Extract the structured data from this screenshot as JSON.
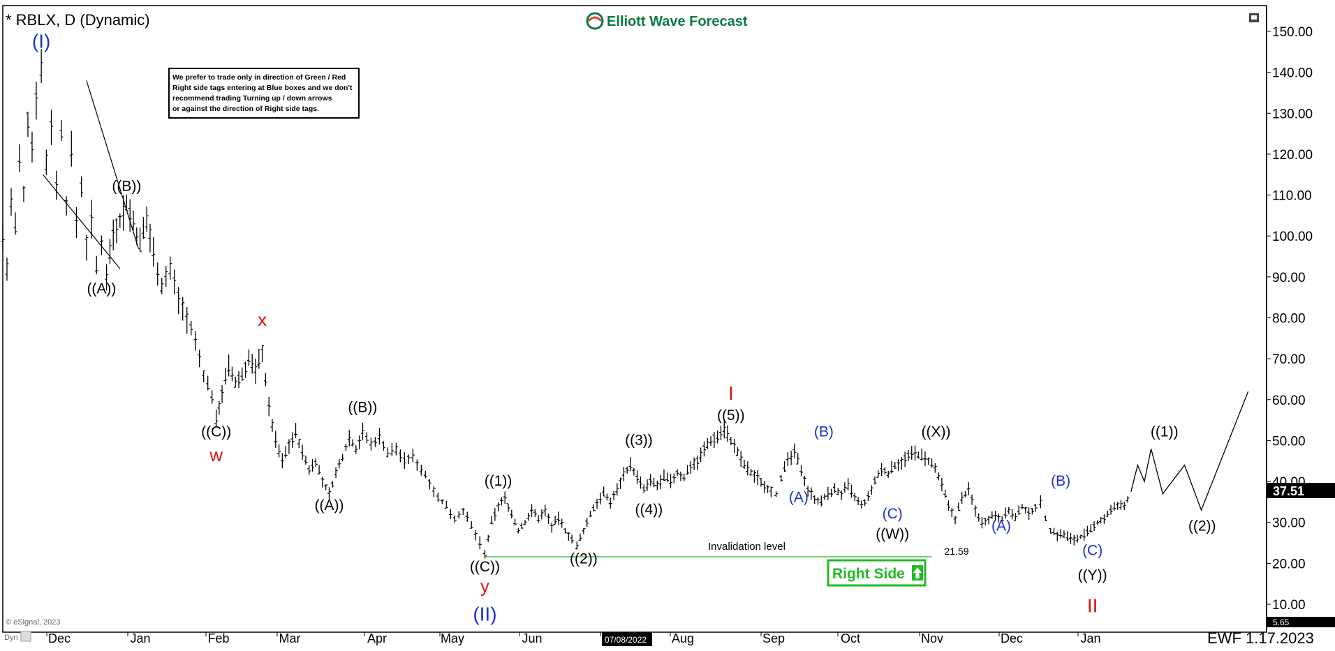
{
  "header": {
    "title": "* RBLX, D (Dynamic)",
    "logo": "Elliott Wave Forecast",
    "note": [
      "We prefer to trade only in direction of Green / Red",
      "Right side tags entering at Blue boxes and we don't",
      "recommend trading Turning up / down arrows",
      "or against the direction of Right side tags."
    ]
  },
  "footer": {
    "copyright": "© eSignal, 2023",
    "dyn": "Dyn",
    "ewf_date": "EWF 1.17.2023",
    "date_marker": "07/08/2022"
  },
  "colors": {
    "blue": "#1a2fd0",
    "red": "#e01010",
    "green": "#22bb22",
    "black": "#000000"
  },
  "chart_data": {
    "type": "line",
    "yaxis": {
      "ticks": [
        "150.00",
        "140.00",
        "130.00",
        "120.00",
        "110.00",
        "100.00",
        "90.00",
        "80.00",
        "70.00",
        "60.00",
        "50.00",
        "40.00",
        "30.00",
        "20.00",
        "10.00"
      ],
      "range": [
        5,
        155
      ],
      "last_price": "37.51",
      "min_label": "5.65"
    },
    "months": [
      "Dec",
      "Jan",
      "Feb",
      "Mar",
      "Apr",
      "May",
      "Jun",
      "Jul",
      "Aug",
      "Sep",
      "Oct",
      "Nov",
      "Dec",
      "Jan"
    ],
    "price_path": [
      {
        "d": 0,
        "p": 100
      },
      {
        "d": 5,
        "p": 92
      },
      {
        "d": 10,
        "p": 108
      },
      {
        "d": 15,
        "p": 102
      },
      {
        "d": 20,
        "p": 118
      },
      {
        "d": 25,
        "p": 110
      },
      {
        "d": 30,
        "p": 128
      },
      {
        "d": 35,
        "p": 122
      },
      {
        "d": 40,
        "p": 135
      },
      {
        "d": 46,
        "p": 141
      },
      {
        "d": 52,
        "p": 118
      },
      {
        "d": 58,
        "p": 128
      },
      {
        "d": 64,
        "p": 112
      },
      {
        "d": 70,
        "p": 126
      },
      {
        "d": 76,
        "p": 108
      },
      {
        "d": 82,
        "p": 120
      },
      {
        "d": 88,
        "p": 104
      },
      {
        "d": 94,
        "p": 112
      },
      {
        "d": 100,
        "p": 98
      },
      {
        "d": 106,
        "p": 104
      },
      {
        "d": 112,
        "p": 92
      },
      {
        "d": 118,
        "p": 98
      },
      {
        "d": 124,
        "p": 91
      },
      {
        "d": 132,
        "p": 101
      },
      {
        "d": 140,
        "p": 104
      },
      {
        "d": 148,
        "p": 108
      },
      {
        "d": 156,
        "p": 103
      },
      {
        "d": 164,
        "p": 98
      },
      {
        "d": 172,
        "p": 104
      },
      {
        "d": 180,
        "p": 96
      },
      {
        "d": 190,
        "p": 88
      },
      {
        "d": 200,
        "p": 92
      },
      {
        "d": 210,
        "p": 85
      },
      {
        "d": 220,
        "p": 80
      },
      {
        "d": 230,
        "p": 74
      },
      {
        "d": 240,
        "p": 66
      },
      {
        "d": 250,
        "p": 61
      },
      {
        "d": 255,
        "p": 55
      },
      {
        "d": 262,
        "p": 62
      },
      {
        "d": 270,
        "p": 68
      },
      {
        "d": 278,
        "p": 64
      },
      {
        "d": 286,
        "p": 66
      },
      {
        "d": 294,
        "p": 70
      },
      {
        "d": 302,
        "p": 67
      },
      {
        "d": 310,
        "p": 72
      },
      {
        "d": 318,
        "p": 58
      },
      {
        "d": 326,
        "p": 50
      },
      {
        "d": 334,
        "p": 45
      },
      {
        "d": 342,
        "p": 49
      },
      {
        "d": 350,
        "p": 52
      },
      {
        "d": 358,
        "p": 47
      },
      {
        "d": 366,
        "p": 43
      },
      {
        "d": 374,
        "p": 45
      },
      {
        "d": 382,
        "p": 40
      },
      {
        "d": 390,
        "p": 37
      },
      {
        "d": 398,
        "p": 42
      },
      {
        "d": 406,
        "p": 46
      },
      {
        "d": 414,
        "p": 51
      },
      {
        "d": 422,
        "p": 48
      },
      {
        "d": 430,
        "p": 52
      },
      {
        "d": 440,
        "p": 49
      },
      {
        "d": 450,
        "p": 51
      },
      {
        "d": 460,
        "p": 47
      },
      {
        "d": 470,
        "p": 48
      },
      {
        "d": 480,
        "p": 45
      },
      {
        "d": 490,
        "p": 46
      },
      {
        "d": 500,
        "p": 43
      },
      {
        "d": 510,
        "p": 40
      },
      {
        "d": 520,
        "p": 36
      },
      {
        "d": 530,
        "p": 34
      },
      {
        "d": 540,
        "p": 31
      },
      {
        "d": 550,
        "p": 33
      },
      {
        "d": 560,
        "p": 29
      },
      {
        "d": 570,
        "p": 25
      },
      {
        "d": 576,
        "p": 22
      },
      {
        "d": 584,
        "p": 30
      },
      {
        "d": 592,
        "p": 34
      },
      {
        "d": 600,
        "p": 36
      },
      {
        "d": 608,
        "p": 32
      },
      {
        "d": 616,
        "p": 28
      },
      {
        "d": 624,
        "p": 30
      },
      {
        "d": 632,
        "p": 33
      },
      {
        "d": 640,
        "p": 31
      },
      {
        "d": 648,
        "p": 33
      },
      {
        "d": 656,
        "p": 29
      },
      {
        "d": 664,
        "p": 31
      },
      {
        "d": 672,
        "p": 28
      },
      {
        "d": 680,
        "p": 26
      },
      {
        "d": 686,
        "p": 24
      },
      {
        "d": 694,
        "p": 28
      },
      {
        "d": 702,
        "p": 32
      },
      {
        "d": 710,
        "p": 35
      },
      {
        "d": 718,
        "p": 37
      },
      {
        "d": 726,
        "p": 35
      },
      {
        "d": 734,
        "p": 38
      },
      {
        "d": 742,
        "p": 42
      },
      {
        "d": 750,
        "p": 44
      },
      {
        "d": 758,
        "p": 41
      },
      {
        "d": 766,
        "p": 38
      },
      {
        "d": 774,
        "p": 40
      },
      {
        "d": 782,
        "p": 39
      },
      {
        "d": 790,
        "p": 41
      },
      {
        "d": 798,
        "p": 40
      },
      {
        "d": 806,
        "p": 42
      },
      {
        "d": 814,
        "p": 41
      },
      {
        "d": 822,
        "p": 44
      },
      {
        "d": 830,
        "p": 45
      },
      {
        "d": 838,
        "p": 48
      },
      {
        "d": 846,
        "p": 50
      },
      {
        "d": 854,
        "p": 51
      },
      {
        "d": 862,
        "p": 53
      },
      {
        "d": 870,
        "p": 50
      },
      {
        "d": 878,
        "p": 47
      },
      {
        "d": 886,
        "p": 44
      },
      {
        "d": 894,
        "p": 42
      },
      {
        "d": 902,
        "p": 41
      },
      {
        "d": 910,
        "p": 39
      },
      {
        "d": 918,
        "p": 38
      },
      {
        "d": 924,
        "p": 37
      },
      {
        "d": 930,
        "p": 41
      },
      {
        "d": 938,
        "p": 45
      },
      {
        "d": 946,
        "p": 47
      },
      {
        "d": 954,
        "p": 43
      },
      {
        "d": 962,
        "p": 38
      },
      {
        "d": 970,
        "p": 36
      },
      {
        "d": 978,
        "p": 35
      },
      {
        "d": 986,
        "p": 37
      },
      {
        "d": 994,
        "p": 38
      },
      {
        "d": 1002,
        "p": 37
      },
      {
        "d": 1010,
        "p": 39
      },
      {
        "d": 1018,
        "p": 36
      },
      {
        "d": 1026,
        "p": 34
      },
      {
        "d": 1034,
        "p": 36
      },
      {
        "d": 1042,
        "p": 40
      },
      {
        "d": 1050,
        "p": 43
      },
      {
        "d": 1058,
        "p": 42
      },
      {
        "d": 1066,
        "p": 44
      },
      {
        "d": 1074,
        "p": 45
      },
      {
        "d": 1082,
        "p": 46
      },
      {
        "d": 1090,
        "p": 47
      },
      {
        "d": 1098,
        "p": 46
      },
      {
        "d": 1106,
        "p": 45
      },
      {
        "d": 1114,
        "p": 43
      },
      {
        "d": 1122,
        "p": 39
      },
      {
        "d": 1130,
        "p": 34
      },
      {
        "d": 1138,
        "p": 31
      },
      {
        "d": 1146,
        "p": 36
      },
      {
        "d": 1154,
        "p": 38
      },
      {
        "d": 1162,
        "p": 33
      },
      {
        "d": 1170,
        "p": 30
      },
      {
        "d": 1178,
        "p": 31
      },
      {
        "d": 1186,
        "p": 32
      },
      {
        "d": 1194,
        "p": 31
      },
      {
        "d": 1202,
        "p": 33
      },
      {
        "d": 1210,
        "p": 31
      },
      {
        "d": 1218,
        "p": 34
      },
      {
        "d": 1226,
        "p": 32
      },
      {
        "d": 1234,
        "p": 34
      },
      {
        "d": 1240,
        "p": 35
      },
      {
        "d": 1246,
        "p": 31
      },
      {
        "d": 1252,
        "p": 28
      },
      {
        "d": 1260,
        "p": 27
      },
      {
        "d": 1268,
        "p": 27
      },
      {
        "d": 1276,
        "p": 26
      },
      {
        "d": 1284,
        "p": 26
      },
      {
        "d": 1292,
        "p": 27
      },
      {
        "d": 1300,
        "p": 28
      },
      {
        "d": 1308,
        "p": 30
      },
      {
        "d": 1316,
        "p": 31
      },
      {
        "d": 1324,
        "p": 33
      },
      {
        "d": 1332,
        "p": 34
      },
      {
        "d": 1340,
        "p": 34
      },
      {
        "d": 1348,
        "p": 37.5
      }
    ],
    "projection": [
      {
        "d": 1348,
        "p": 37.5
      },
      {
        "d": 1356,
        "p": 44
      },
      {
        "d": 1364,
        "p": 40
      },
      {
        "d": 1372,
        "p": 48
      },
      {
        "d": 1386,
        "p": 37
      },
      {
        "d": 1412,
        "p": 44
      },
      {
        "d": 1432,
        "p": 33
      },
      {
        "d": 1488,
        "p": 62
      }
    ],
    "wedge_lines": [
      [
        {
          "d": 48,
          "p": 115
        },
        {
          "d": 140,
          "p": 92
        }
      ],
      [
        {
          "d": 100,
          "p": 138
        },
        {
          "d": 162,
          "p": 97
        }
      ]
    ],
    "invalidation": {
      "label": "Invalidation level",
      "value_label": "21.59",
      "price": 21.59,
      "from_d": 576,
      "to_d": 1110
    },
    "right_side": "Right Side",
    "wave_labels": [
      {
        "text": "(I)",
        "d": 46,
        "p": 146,
        "color": "blue",
        "size": 28
      },
      {
        "text": "((B))",
        "d": 148,
        "p": 111,
        "color": "black",
        "size": 21
      },
      {
        "text": "((A))",
        "d": 118,
        "p": 86,
        "color": "black",
        "size": 21
      },
      {
        "text": "x",
        "d": 310,
        "p": 78,
        "color": "red",
        "size": 26
      },
      {
        "text": "((C))",
        "d": 255,
        "p": 51,
        "color": "black",
        "size": 21
      },
      {
        "text": "w",
        "d": 255,
        "p": 45,
        "color": "red",
        "size": 26
      },
      {
        "text": "((B))",
        "d": 430,
        "p": 57,
        "color": "black",
        "size": 21
      },
      {
        "text": "((A))",
        "d": 390,
        "p": 33,
        "color": "black",
        "size": 21
      },
      {
        "text": "((1))",
        "d": 592,
        "p": 39,
        "color": "black",
        "size": 21
      },
      {
        "text": "((C))",
        "d": 576,
        "p": 18,
        "color": "black",
        "size": 21
      },
      {
        "text": "y",
        "d": 576,
        "p": 13,
        "color": "red",
        "size": 26
      },
      {
        "text": "(II)",
        "d": 576,
        "p": 6,
        "color": "blue",
        "size": 28
      },
      {
        "text": "((3))",
        "d": 760,
        "p": 49,
        "color": "black",
        "size": 21
      },
      {
        "text": "((4))",
        "d": 772,
        "p": 32,
        "color": "black",
        "size": 21
      },
      {
        "text": "((2))",
        "d": 694,
        "p": 20,
        "color": "black",
        "size": 21
      },
      {
        "text": "I",
        "d": 870,
        "p": 60,
        "color": "red",
        "size": 28
      },
      {
        "text": "((5))",
        "d": 870,
        "p": 55,
        "color": "black",
        "size": 21
      },
      {
        "text": "(B)",
        "d": 981,
        "p": 51,
        "color": "blue",
        "size": 21
      },
      {
        "text": "(A)",
        "d": 951,
        "p": 35,
        "color": "blue",
        "size": 21
      },
      {
        "text": "((X))",
        "d": 1115,
        "p": 51,
        "color": "black",
        "size": 21
      },
      {
        "text": "(C)",
        "d": 1063,
        "p": 31,
        "color": "blue",
        "size": 21
      },
      {
        "text": "((W))",
        "d": 1063,
        "p": 26,
        "color": "black",
        "size": 21
      },
      {
        "text": "(A)",
        "d": 1193,
        "p": 28,
        "color": "blue",
        "size": 21
      },
      {
        "text": "(B)",
        "d": 1264,
        "p": 39,
        "color": "blue",
        "size": 21
      },
      {
        "text": "(C)",
        "d": 1302,
        "p": 22,
        "color": "blue",
        "size": 21
      },
      {
        "text": "((Y))",
        "d": 1302,
        "p": 16,
        "color": "black",
        "size": 21
      },
      {
        "text": "II",
        "d": 1302,
        "p": 8,
        "color": "red",
        "size": 28
      },
      {
        "text": "((1))",
        "d": 1388,
        "p": 51,
        "color": "black",
        "size": 21
      },
      {
        "text": "((2))",
        "d": 1433,
        "p": 28,
        "color": "black",
        "size": 21
      }
    ]
  }
}
